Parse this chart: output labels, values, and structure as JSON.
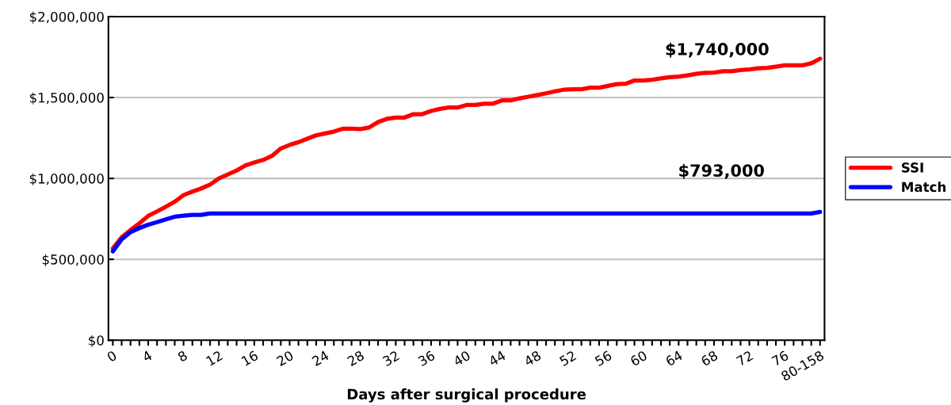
{
  "chart_data": {
    "type": "line",
    "xlabel": "Days after surgical procedure",
    "categories": [
      "0",
      null,
      null,
      null,
      "4",
      null,
      null,
      null,
      "8",
      null,
      null,
      null,
      "12",
      null,
      null,
      null,
      "16",
      null,
      null,
      null,
      "20",
      null,
      null,
      null,
      "24",
      null,
      null,
      null,
      "28",
      null,
      null,
      null,
      "32",
      null,
      null,
      null,
      "36",
      null,
      null,
      null,
      "40",
      null,
      null,
      null,
      "44",
      null,
      null,
      null,
      "48",
      null,
      null,
      null,
      "52",
      null,
      null,
      null,
      "56",
      null,
      null,
      null,
      "60",
      null,
      null,
      null,
      "64",
      null,
      null,
      null,
      "68",
      null,
      null,
      null,
      "72",
      null,
      null,
      null,
      "76",
      null,
      null,
      null,
      "80-158"
    ],
    "series": [
      {
        "name": "SSI",
        "color": "#ff0000",
        "values": [
          567000,
          636000,
          681000,
          722000,
          768000,
          796000,
          825000,
          856000,
          897000,
          918000,
          938000,
          962000,
          1000000,
          1024000,
          1049000,
          1080000,
          1098000,
          1114000,
          1139000,
          1185000,
          1207000,
          1224000,
          1245000,
          1266000,
          1278000,
          1289000,
          1307000,
          1307000,
          1305000,
          1315000,
          1348000,
          1368000,
          1376000,
          1376000,
          1397000,
          1397000,
          1417000,
          1430000,
          1438000,
          1438000,
          1454000,
          1454000,
          1462000,
          1462000,
          1482000,
          1482000,
          1495000,
          1505000,
          1515000,
          1526000,
          1538000,
          1548000,
          1551000,
          1551000,
          1561000,
          1561000,
          1572000,
          1583000,
          1585000,
          1605000,
          1605000,
          1610000,
          1618000,
          1626000,
          1629000,
          1637000,
          1646000,
          1652000,
          1654000,
          1662000,
          1662000,
          1670000,
          1673000,
          1681000,
          1683000,
          1691000,
          1699000,
          1699000,
          1699000,
          1711000,
          1740000
        ]
      },
      {
        "name": "Match",
        "color": "#0000ff",
        "values": [
          549000,
          624000,
          668000,
          693000,
          714000,
          730000,
          747000,
          763000,
          770000,
          775000,
          775000,
          783000,
          783000,
          783000,
          783000,
          783000,
          783000,
          783000,
          783000,
          783000,
          783000,
          783000,
          783000,
          783000,
          783000,
          783000,
          783000,
          783000,
          783000,
          783000,
          783000,
          783000,
          783000,
          783000,
          783000,
          783000,
          783000,
          783000,
          783000,
          783000,
          783000,
          783000,
          783000,
          783000,
          783000,
          783000,
          783000,
          783000,
          783000,
          783000,
          783000,
          783000,
          783000,
          783000,
          783000,
          783000,
          783000,
          783000,
          783000,
          783000,
          783000,
          783000,
          783000,
          783000,
          783000,
          783000,
          783000,
          783000,
          783000,
          783000,
          783000,
          783000,
          783000,
          783000,
          783000,
          783000,
          783000,
          783000,
          783000,
          783000,
          793000
        ]
      }
    ],
    "ylim": [
      0,
      2000000
    ],
    "yticks": [
      {
        "value": 0,
        "label": "$0"
      },
      {
        "value": 500000,
        "label": "$500,000"
      },
      {
        "value": 1000000,
        "label": "$1,000,000"
      },
      {
        "value": 1500000,
        "label": "$1,500,000"
      },
      {
        "value": 2000000,
        "label": "$2,000,000"
      }
    ],
    "grid": "y",
    "legend": "right",
    "marker": "none",
    "line_style": "solid",
    "annotations": [
      "$1,740,000",
      "$793,000"
    ]
  }
}
